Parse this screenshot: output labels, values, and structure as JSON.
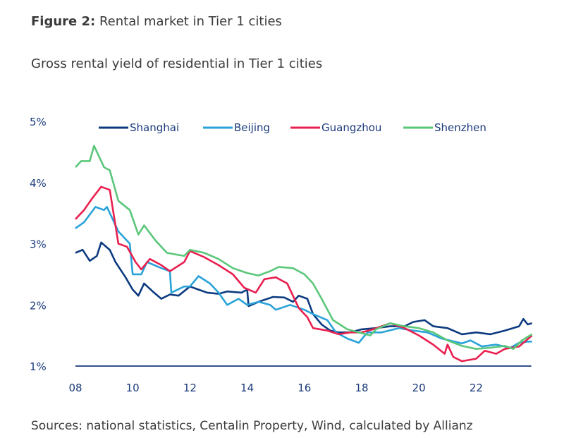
{
  "figure": {
    "label": "Figure 2:",
    "title": "Rental market in Tier 1 cities",
    "subtitle": "Gross rental yield of residential in Tier 1 cities",
    "source": "Sources: national statistics, Centalin Property, Wind, calculated by Allianz"
  },
  "chart_data": {
    "type": "line",
    "title": "Gross rental yield of residential in Tier 1 cities",
    "xlabel": "",
    "ylabel": "",
    "xlim": [
      2008,
      2024
    ],
    "ylim": [
      1,
      5
    ],
    "x_ticks": [
      {
        "v": 2008,
        "label": "08"
      },
      {
        "v": 2010,
        "label": "10"
      },
      {
        "v": 2012,
        "label": "12"
      },
      {
        "v": 2014,
        "label": "14"
      },
      {
        "v": 2016,
        "label": "16"
      },
      {
        "v": 2018,
        "label": "18"
      },
      {
        "v": 2020,
        "label": "20"
      },
      {
        "v": 2022,
        "label": "22"
      }
    ],
    "y_ticks": [
      {
        "v": 1,
        "label": "1%"
      },
      {
        "v": 2,
        "label": "2%"
      },
      {
        "v": 3,
        "label": "3%"
      },
      {
        "v": 4,
        "label": "4%"
      },
      {
        "v": 5,
        "label": "5%"
      }
    ],
    "grid": false,
    "legend_position": "top",
    "series": [
      {
        "name": "Shanghai",
        "color": "#0d3b80",
        "points": [
          [
            2008.0,
            2.85
          ],
          [
            2008.25,
            2.9
          ],
          [
            2008.5,
            2.72
          ],
          [
            2008.75,
            2.8
          ],
          [
            2008.9,
            3.02
          ],
          [
            2009.2,
            2.9
          ],
          [
            2009.4,
            2.7
          ],
          [
            2009.75,
            2.45
          ],
          [
            2010.0,
            2.25
          ],
          [
            2010.2,
            2.15
          ],
          [
            2010.4,
            2.35
          ],
          [
            2010.7,
            2.22
          ],
          [
            2011.0,
            2.1
          ],
          [
            2011.3,
            2.17
          ],
          [
            2011.6,
            2.15
          ],
          [
            2012.0,
            2.3
          ],
          [
            2012.3,
            2.25
          ],
          [
            2012.6,
            2.2
          ],
          [
            2013.0,
            2.18
          ],
          [
            2013.3,
            2.22
          ],
          [
            2013.8,
            2.2
          ],
          [
            2014.0,
            2.25
          ],
          [
            2014.05,
            1.98
          ],
          [
            2014.4,
            2.05
          ],
          [
            2014.9,
            2.13
          ],
          [
            2015.3,
            2.12
          ],
          [
            2015.6,
            2.05
          ],
          [
            2015.8,
            2.15
          ],
          [
            2016.1,
            2.1
          ],
          [
            2016.3,
            1.85
          ],
          [
            2016.6,
            1.68
          ],
          [
            2016.9,
            1.58
          ],
          [
            2017.2,
            1.55
          ],
          [
            2017.6,
            1.55
          ],
          [
            2018.0,
            1.6
          ],
          [
            2018.5,
            1.62
          ],
          [
            2019.0,
            1.65
          ],
          [
            2019.5,
            1.65
          ],
          [
            2019.8,
            1.72
          ],
          [
            2020.2,
            1.75
          ],
          [
            2020.5,
            1.65
          ],
          [
            2021.0,
            1.62
          ],
          [
            2021.5,
            1.52
          ],
          [
            2022.0,
            1.55
          ],
          [
            2022.5,
            1.52
          ],
          [
            2023.0,
            1.58
          ],
          [
            2023.5,
            1.65
          ],
          [
            2023.65,
            1.77
          ],
          [
            2023.8,
            1.68
          ],
          [
            2023.95,
            1.7
          ]
        ]
      },
      {
        "name": "Beijing",
        "color": "#2aa3d8",
        "points": [
          [
            2008.0,
            3.25
          ],
          [
            2008.3,
            3.35
          ],
          [
            2008.7,
            3.6
          ],
          [
            2009.0,
            3.55
          ],
          [
            2009.1,
            3.6
          ],
          [
            2009.5,
            3.2
          ],
          [
            2009.9,
            3.0
          ],
          [
            2010.0,
            2.5
          ],
          [
            2010.3,
            2.5
          ],
          [
            2010.5,
            2.7
          ],
          [
            2011.0,
            2.6
          ],
          [
            2011.3,
            2.55
          ],
          [
            2011.35,
            2.2
          ],
          [
            2011.8,
            2.3
          ],
          [
            2012.0,
            2.3
          ],
          [
            2012.3,
            2.47
          ],
          [
            2012.7,
            2.35
          ],
          [
            2013.0,
            2.2
          ],
          [
            2013.3,
            2.0
          ],
          [
            2013.7,
            2.1
          ],
          [
            2014.0,
            2.0
          ],
          [
            2014.4,
            2.05
          ],
          [
            2014.8,
            2.0
          ],
          [
            2015.0,
            1.92
          ],
          [
            2015.5,
            2.0
          ],
          [
            2016.0,
            1.92
          ],
          [
            2016.3,
            1.85
          ],
          [
            2016.8,
            1.75
          ],
          [
            2017.1,
            1.55
          ],
          [
            2017.5,
            1.45
          ],
          [
            2017.9,
            1.38
          ],
          [
            2018.2,
            1.55
          ],
          [
            2018.7,
            1.55
          ],
          [
            2019.3,
            1.62
          ],
          [
            2019.8,
            1.58
          ],
          [
            2020.3,
            1.55
          ],
          [
            2020.8,
            1.45
          ],
          [
            2021.5,
            1.37
          ],
          [
            2021.8,
            1.42
          ],
          [
            2022.2,
            1.32
          ],
          [
            2022.7,
            1.35
          ],
          [
            2023.2,
            1.3
          ],
          [
            2023.5,
            1.38
          ],
          [
            2023.8,
            1.4
          ],
          [
            2023.95,
            1.4
          ]
        ]
      },
      {
        "name": "Guangzhou",
        "color": "#e8204f",
        "points": [
          [
            2008.0,
            3.4
          ],
          [
            2008.3,
            3.55
          ],
          [
            2008.6,
            3.75
          ],
          [
            2008.9,
            3.93
          ],
          [
            2009.2,
            3.88
          ],
          [
            2009.5,
            3.0
          ],
          [
            2009.8,
            2.95
          ],
          [
            2010.1,
            2.7
          ],
          [
            2010.3,
            2.58
          ],
          [
            2010.6,
            2.75
          ],
          [
            2011.0,
            2.65
          ],
          [
            2011.3,
            2.55
          ],
          [
            2011.8,
            2.7
          ],
          [
            2012.0,
            2.88
          ],
          [
            2012.5,
            2.78
          ],
          [
            2013.0,
            2.65
          ],
          [
            2013.5,
            2.5
          ],
          [
            2013.9,
            2.28
          ],
          [
            2014.3,
            2.2
          ],
          [
            2014.6,
            2.42
          ],
          [
            2015.0,
            2.45
          ],
          [
            2015.4,
            2.35
          ],
          [
            2015.8,
            1.95
          ],
          [
            2016.1,
            1.8
          ],
          [
            2016.3,
            1.62
          ],
          [
            2016.8,
            1.58
          ],
          [
            2017.2,
            1.52
          ],
          [
            2017.6,
            1.55
          ],
          [
            2018.0,
            1.55
          ],
          [
            2018.4,
            1.6
          ],
          [
            2019.0,
            1.7
          ],
          [
            2019.5,
            1.62
          ],
          [
            2020.0,
            1.5
          ],
          [
            2020.5,
            1.35
          ],
          [
            2020.9,
            1.2
          ],
          [
            2021.0,
            1.35
          ],
          [
            2021.2,
            1.15
          ],
          [
            2021.5,
            1.08
          ],
          [
            2022.0,
            1.12
          ],
          [
            2022.3,
            1.25
          ],
          [
            2022.7,
            1.2
          ],
          [
            2023.0,
            1.28
          ],
          [
            2023.5,
            1.32
          ],
          [
            2023.95,
            1.5
          ]
        ]
      },
      {
        "name": "Shenzhen",
        "color": "#5bc77a",
        "points": [
          [
            2008.0,
            4.25
          ],
          [
            2008.2,
            4.35
          ],
          [
            2008.5,
            4.35
          ],
          [
            2008.65,
            4.6
          ],
          [
            2009.0,
            4.25
          ],
          [
            2009.2,
            4.2
          ],
          [
            2009.5,
            3.7
          ],
          [
            2009.9,
            3.55
          ],
          [
            2010.2,
            3.15
          ],
          [
            2010.4,
            3.3
          ],
          [
            2010.8,
            3.05
          ],
          [
            2011.2,
            2.85
          ],
          [
            2011.8,
            2.8
          ],
          [
            2012.0,
            2.9
          ],
          [
            2012.5,
            2.85
          ],
          [
            2013.0,
            2.75
          ],
          [
            2013.5,
            2.6
          ],
          [
            2014.0,
            2.52
          ],
          [
            2014.4,
            2.48
          ],
          [
            2014.8,
            2.55
          ],
          [
            2015.1,
            2.62
          ],
          [
            2015.6,
            2.6
          ],
          [
            2016.0,
            2.5
          ],
          [
            2016.3,
            2.35
          ],
          [
            2016.6,
            2.1
          ],
          [
            2017.0,
            1.75
          ],
          [
            2017.5,
            1.6
          ],
          [
            2017.9,
            1.55
          ],
          [
            2018.3,
            1.5
          ],
          [
            2018.5,
            1.6
          ],
          [
            2019.0,
            1.7
          ],
          [
            2019.5,
            1.65
          ],
          [
            2020.0,
            1.62
          ],
          [
            2020.5,
            1.55
          ],
          [
            2021.0,
            1.42
          ],
          [
            2021.5,
            1.33
          ],
          [
            2022.0,
            1.28
          ],
          [
            2022.5,
            1.3
          ],
          [
            2023.0,
            1.33
          ],
          [
            2023.3,
            1.28
          ],
          [
            2023.6,
            1.42
          ],
          [
            2023.95,
            1.52
          ]
        ]
      }
    ]
  }
}
